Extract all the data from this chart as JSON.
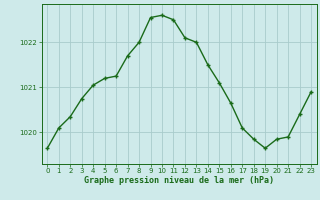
{
  "x": [
    0,
    1,
    2,
    3,
    4,
    5,
    6,
    7,
    8,
    9,
    10,
    11,
    12,
    13,
    14,
    15,
    16,
    17,
    18,
    19,
    20,
    21,
    22,
    23
  ],
  "y": [
    1019.65,
    1020.1,
    1020.35,
    1020.75,
    1021.05,
    1021.2,
    1021.25,
    1021.7,
    1022.0,
    1022.55,
    1022.6,
    1022.5,
    1022.1,
    1022.0,
    1021.5,
    1021.1,
    1020.65,
    1020.1,
    1019.85,
    1019.65,
    1019.85,
    1019.9,
    1020.4,
    1020.9
  ],
  "line_color": "#1a6b1a",
  "marker": "+",
  "marker_size": 3.5,
  "marker_linewidth": 1.0,
  "bg_color": "#ceeaea",
  "grid_color": "#a8cccc",
  "axis_color": "#1a6b1a",
  "xlabel": "Graphe pression niveau de la mer (hPa)",
  "xlabel_fontsize": 6.0,
  "yticks": [
    1020,
    1021,
    1022
  ],
  "ylim": [
    1019.3,
    1022.85
  ],
  "xlim": [
    -0.5,
    23.5
  ],
  "xtick_labels": [
    "0",
    "1",
    "2",
    "3",
    "4",
    "5",
    "6",
    "7",
    "8",
    "9",
    "10",
    "11",
    "12",
    "13",
    "14",
    "15",
    "16",
    "17",
    "18",
    "19",
    "20",
    "21",
    "22",
    "23"
  ],
  "tick_fontsize": 5.0,
  "linewidth": 1.0
}
